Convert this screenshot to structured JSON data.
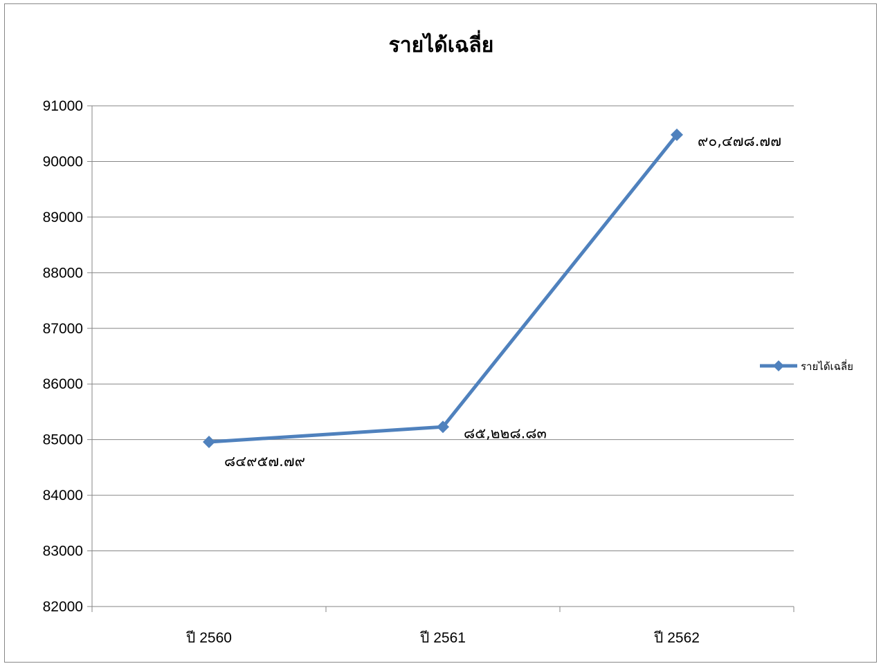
{
  "chart_data": {
    "type": "line",
    "title": "รายได้เฉลี่ย",
    "categories": [
      "ปี 2560",
      "ปี 2561",
      "ปี 2562"
    ],
    "series": [
      {
        "name": "รายได้เฉลี่ย",
        "values": [
          84957.79,
          85228.83,
          90478.77
        ],
        "data_labels": [
          "๘๔๙๕๗.๗๙",
          "๘๕,๒๒๘.๘๓",
          "๙๐,๔๗๘.๗๗"
        ],
        "color": "#4F81BD"
      }
    ],
    "ylim": [
      82000,
      91000
    ],
    "yticks": [
      82000,
      83000,
      84000,
      85000,
      86000,
      87000,
      88000,
      89000,
      90000,
      91000
    ],
    "grid": true,
    "legend": "right"
  }
}
